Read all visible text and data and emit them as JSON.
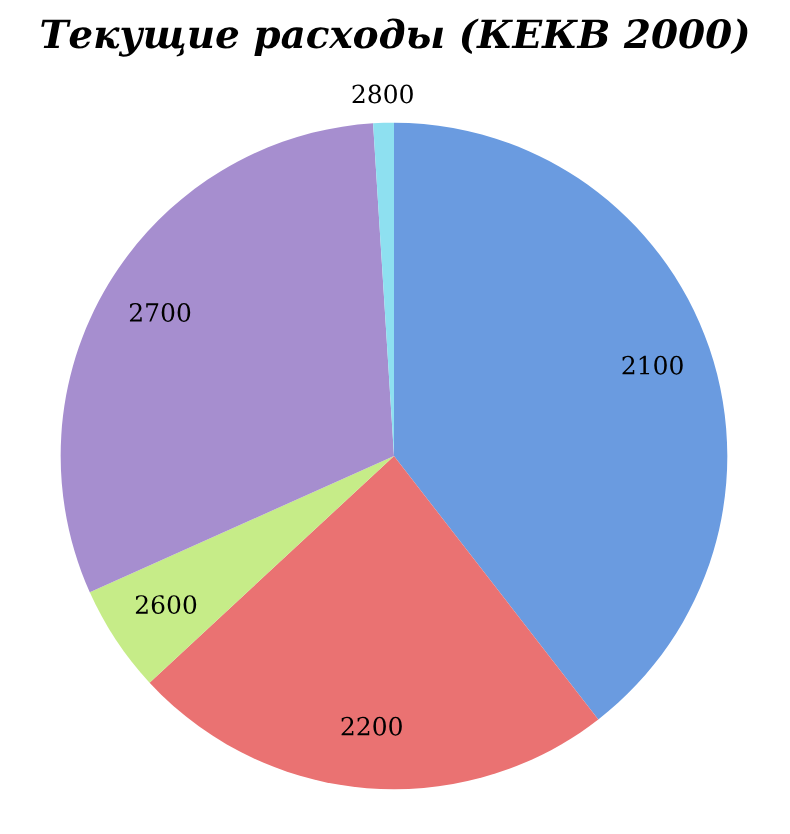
{
  "chart_data": {
    "type": "pie",
    "title": "Текущие расходы (КЕКВ 2000)",
    "categories": [
      "2100",
      "2200",
      "2600",
      "2700",
      "2800"
    ],
    "values": [
      39.5,
      23.6,
      5.2,
      30.7,
      1.0
    ],
    "colors": [
      "#6a9be0",
      "#ea7272",
      "#c6ec88",
      "#a68ecf",
      "#8ee0f0"
    ],
    "legend": false
  }
}
